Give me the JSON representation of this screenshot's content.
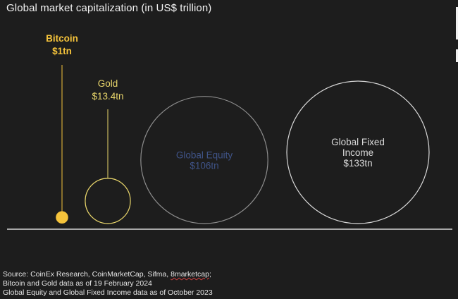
{
  "title": "Global market capitalization (in US$ trillion)",
  "chart_data": {
    "type": "bubble",
    "title": "Global market capitalization (in US$ trillion)",
    "unit": "US$ trillion",
    "items": [
      {
        "name": "Bitcoin",
        "value": 1,
        "value_label": "$1tn",
        "color": "#f5c33b",
        "style": "filled",
        "name_bold": true,
        "label_color": "#f5c33b"
      },
      {
        "name": "Gold",
        "value": 13.4,
        "value_label": "$13.4tn",
        "color": "#e9d66b",
        "style": "outline",
        "name_bold": false,
        "label_color": "#e9d66b"
      },
      {
        "name": "Global Equity",
        "value": 106,
        "value_label": "$106tn",
        "color": "#8d8d8d",
        "style": "outline",
        "name_bold": false,
        "label_color": "#3f5387"
      },
      {
        "name": "Global Fixed Income",
        "name_lines": [
          "Global Fixed",
          "Income"
        ],
        "value": 133,
        "value_label": "$133tn",
        "color": "#d9d9d9",
        "style": "outline",
        "name_bold": false,
        "label_color": "#d9d9d9"
      }
    ]
  },
  "source": {
    "line1_prefix": "Source: CoinEx Research, CoinMarketCap, Sifma, ",
    "line1_flagged": "8marketcap",
    "line1_suffix": ";",
    "line2": "Bitcoin and Gold data as of 19 February 2024",
    "line3": "Global Equity and Global Fixed Income data as of October 2023"
  }
}
